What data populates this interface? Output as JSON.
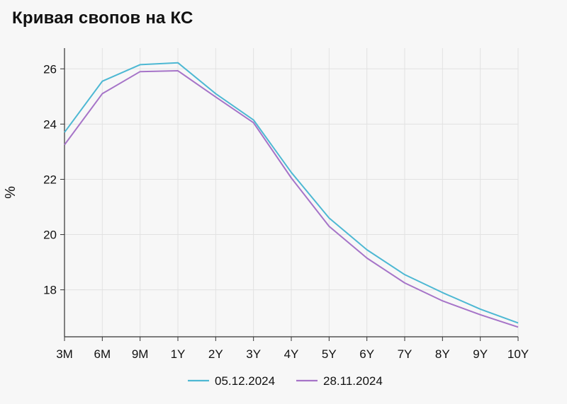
{
  "title": "Кривая свопов на КС",
  "chart_data": {
    "type": "line",
    "title": "Кривая свопов на КС",
    "xlabel": "",
    "ylabel": "%",
    "categories": [
      "3M",
      "6M",
      "9M",
      "1Y",
      "2Y",
      "3Y",
      "4Y",
      "5Y",
      "6Y",
      "7Y",
      "8Y",
      "9Y",
      "10Y"
    ],
    "ylim": [
      16.3,
      26.75
    ],
    "yticks": [
      18,
      20,
      22,
      24,
      26
    ],
    "grid": true,
    "legend": "bottom",
    "series": [
      {
        "name": "05.12.2024",
        "color": "#4db8d3",
        "values": [
          23.7,
          25.55,
          26.15,
          26.22,
          25.1,
          24.15,
          22.25,
          20.6,
          19.45,
          18.55,
          17.9,
          17.3,
          16.8
        ]
      },
      {
        "name": "28.11.2024",
        "color": "#a674c8",
        "values": [
          23.25,
          25.1,
          25.9,
          25.93,
          24.98,
          24.05,
          22.05,
          20.3,
          19.15,
          18.25,
          17.6,
          17.1,
          16.65
        ]
      }
    ]
  }
}
